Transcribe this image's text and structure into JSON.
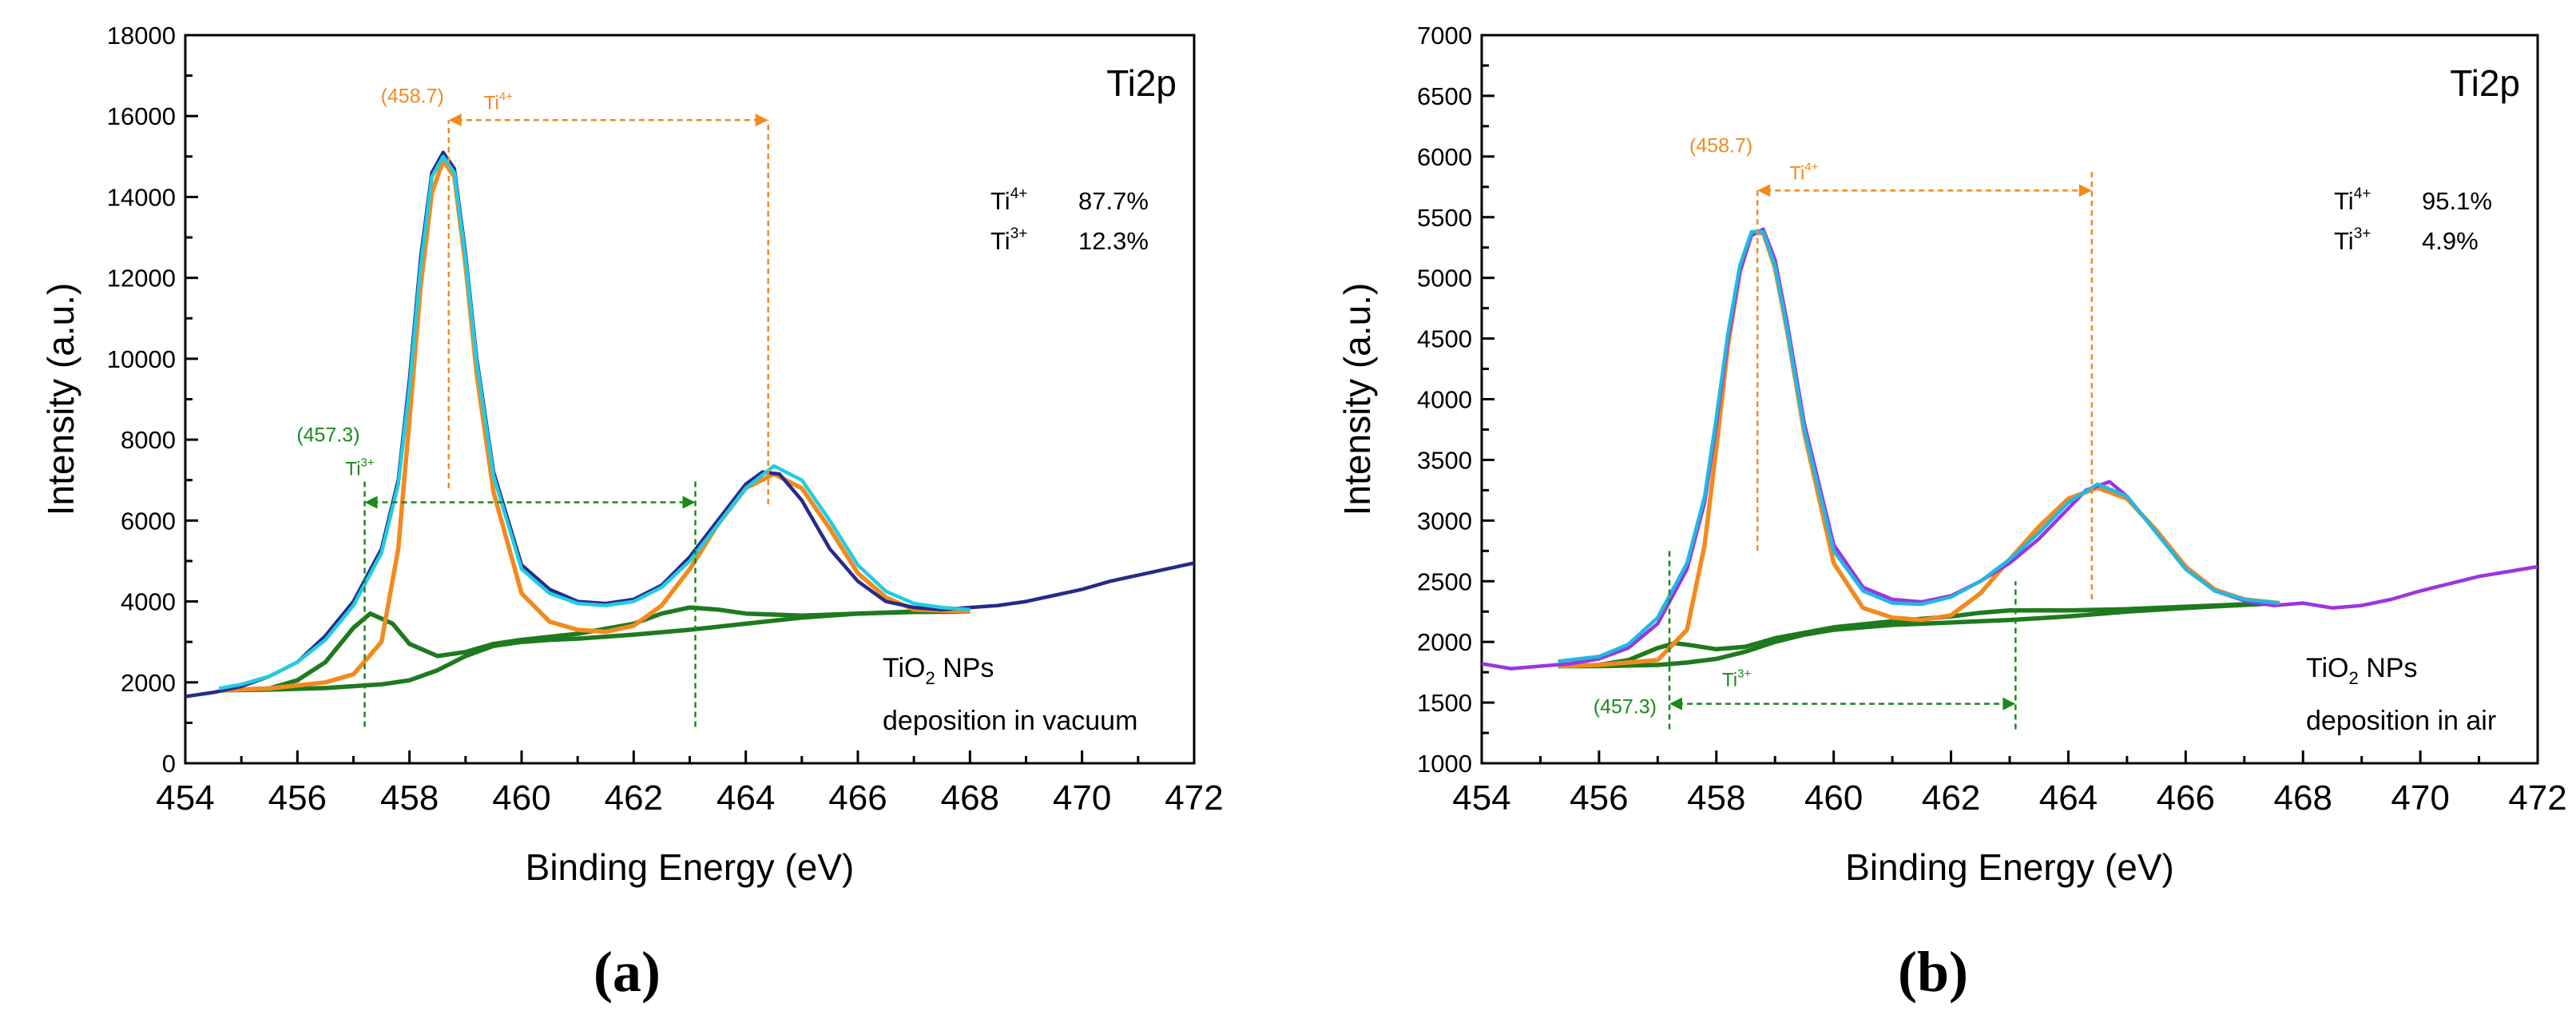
{
  "chart_data": [
    {
      "panel_label": "(a)",
      "type": "line",
      "title": "Ti2p",
      "xlabel": "Binding Energy (eV)",
      "ylabel": "Intensity (a.u.)",
      "xlim": [
        454,
        472
      ],
      "ylim": [
        0,
        18000
      ],
      "xticks": [
        454,
        456,
        458,
        460,
        462,
        464,
        466,
        468,
        470,
        472
      ],
      "yticks": [
        0,
        2000,
        4000,
        6000,
        8000,
        10000,
        12000,
        14000,
        16000,
        18000
      ],
      "grid": false,
      "ratios": [
        {
          "ion": "Ti",
          "charge": "4+",
          "value": "87.7%"
        },
        {
          "ion": "Ti",
          "charge": "3+",
          "value": "12.3%"
        }
      ],
      "sample_label": {
        "line1_prefix": "TiO",
        "line1_sub": "2",
        "line1_suffix": " NPs",
        "line2": "deposition in vacuum"
      },
      "annotations": {
        "ti4": {
          "position": "(458.7)",
          "ion": "Ti",
          "charge": "4+",
          "from": 458.7,
          "to": 464.4,
          "arrow_y": 15900,
          "vline1_range": [
            6800,
            15900
          ],
          "vline2_range": [
            6400,
            15900
          ],
          "color": "#f28a1e"
        },
        "ti3": {
          "position": "(457.3)",
          "ion": "Ti",
          "charge": "3+",
          "from": 457.2,
          "to": 463.1,
          "arrow_y": 6450,
          "vline1_range": [
            900,
            7000
          ],
          "vline2_range": [
            900,
            7000
          ],
          "color": "#1a8a1a"
        }
      },
      "series": [
        {
          "role": "measured",
          "color": "#262a8c",
          "x": [
            454.0,
            454.5,
            455.0,
            455.5,
            456.0,
            456.5,
            457.0,
            457.5,
            457.8,
            458.0,
            458.2,
            458.4,
            458.6,
            458.8,
            459.0,
            459.2,
            459.5,
            460.0,
            460.5,
            461.0,
            461.5,
            462.0,
            462.5,
            463.0,
            463.5,
            464.0,
            464.3,
            464.6,
            465.0,
            465.5,
            466.0,
            466.5,
            467.0,
            467.5,
            468.0,
            468.5,
            469.0,
            469.5,
            470.0,
            470.5,
            471.0,
            471.5,
            472.0
          ],
          "y": [
            1650,
            1750,
            1900,
            2150,
            2500,
            3150,
            4000,
            5300,
            7000,
            9500,
            12500,
            14600,
            15100,
            14700,
            12600,
            10000,
            7200,
            4900,
            4300,
            4000,
            3950,
            4050,
            4400,
            5100,
            6000,
            6900,
            7200,
            7150,
            6500,
            5300,
            4500,
            4000,
            3850,
            3800,
            3850,
            3900,
            4000,
            4150,
            4300,
            4500,
            4650,
            4800,
            4950
          ]
        },
        {
          "role": "envelope",
          "color": "#22cce0",
          "x": [
            454.6,
            455.0,
            455.5,
            456.0,
            456.5,
            457.0,
            457.5,
            457.8,
            458.0,
            458.2,
            458.4,
            458.6,
            458.8,
            459.0,
            459.2,
            459.5,
            460.0,
            460.5,
            461.0,
            461.5,
            462.0,
            462.5,
            463.0,
            463.5,
            464.0,
            464.5,
            465.0,
            465.5,
            466.0,
            466.5,
            467.0,
            467.5,
            468.0
          ],
          "y": [
            1850,
            1950,
            2150,
            2500,
            3050,
            3900,
            5200,
            6900,
            9300,
            12300,
            14500,
            15000,
            14600,
            12500,
            9900,
            7100,
            4800,
            4200,
            3950,
            3900,
            4000,
            4350,
            5000,
            5900,
            6800,
            7350,
            7000,
            6000,
            4900,
            4250,
            3950,
            3850,
            3800
          ]
        },
        {
          "role": "Ti4+ component",
          "color": "#f28a1e",
          "x": [
            454.6,
            455.5,
            456.5,
            457.0,
            457.5,
            457.8,
            458.0,
            458.2,
            458.4,
            458.6,
            458.8,
            459.0,
            459.2,
            459.5,
            460.0,
            460.5,
            461.0,
            461.5,
            462.0,
            462.5,
            463.0,
            463.5,
            464.0,
            464.5,
            465.0,
            465.5,
            466.0,
            466.5,
            467.0,
            468.0
          ],
          "y": [
            1800,
            1850,
            2000,
            2200,
            3000,
            5300,
            8500,
            11800,
            14100,
            14900,
            14500,
            12300,
            9600,
            6700,
            4200,
            3500,
            3300,
            3250,
            3400,
            3900,
            4800,
            5900,
            6800,
            7150,
            6800,
            5800,
            4700,
            4100,
            3800,
            3750
          ]
        },
        {
          "role": "Ti3+ component",
          "color": "#1f7a1f",
          "x": [
            454.6,
            455.5,
            456.0,
            456.5,
            457.0,
            457.3,
            457.7,
            458.0,
            458.5,
            459.0,
            459.5,
            460.0,
            461.0,
            462.0,
            462.5,
            463.0,
            463.5,
            464.0,
            465.0,
            466.0,
            467.0,
            468.0
          ],
          "y": [
            1800,
            1850,
            2050,
            2500,
            3350,
            3700,
            3450,
            2950,
            2650,
            2750,
            2950,
            3050,
            3200,
            3450,
            3700,
            3850,
            3800,
            3700,
            3650,
            3700,
            3750,
            3750
          ]
        },
        {
          "role": "background",
          "color": "#1f7a1f",
          "x": [
            454.6,
            455.5,
            456.5,
            457.5,
            458.0,
            458.5,
            459.0,
            459.5,
            460.0,
            460.5,
            461.0,
            462.0,
            463.0,
            464.0,
            465.0,
            466.0,
            467.0,
            468.0
          ],
          "y": [
            1800,
            1820,
            1860,
            1950,
            2050,
            2300,
            2650,
            2900,
            3000,
            3050,
            3080,
            3180,
            3300,
            3450,
            3600,
            3700,
            3740,
            3750
          ]
        }
      ]
    },
    {
      "panel_label": "(b)",
      "type": "line",
      "title": "Ti2p",
      "xlabel": "Binding Energy (eV)",
      "ylabel": "Intensity (a.u.)",
      "xlim": [
        454,
        472
      ],
      "ylim": [
        1000,
        7000
      ],
      "xticks": [
        454,
        456,
        458,
        460,
        462,
        464,
        466,
        468,
        470,
        472
      ],
      "yticks": [
        1000,
        1500,
        2000,
        2500,
        3000,
        3500,
        4000,
        4500,
        5000,
        5500,
        6000,
        6500,
        7000
      ],
      "grid": false,
      "ratios": [
        {
          "ion": "Ti",
          "charge": "4+",
          "value": "95.1%"
        },
        {
          "ion": "Ti",
          "charge": "3+",
          "value": "4.9%"
        }
      ],
      "sample_label": {
        "line1_prefix": "TiO",
        "line1_sub": "2",
        "line1_suffix": " NPs",
        "line2": "deposition in air"
      },
      "annotations": {
        "ti4": {
          "position": "(458.7)",
          "ion": "Ti",
          "charge": "4+",
          "from": 458.7,
          "to": 464.4,
          "arrow_y": 5720,
          "vline1_range": [
            2750,
            5720
          ],
          "vline2_range": [
            2350,
            5900
          ],
          "color": "#f28a1e"
        },
        "ti3": {
          "position": "(457.3)",
          "ion": "Ti",
          "charge": "3+",
          "from": 457.2,
          "to": 463.1,
          "arrow_y": 1490,
          "vline1_range": [
            1280,
            2750
          ],
          "vline2_range": [
            1280,
            2500
          ],
          "color": "#1a8a1a"
        }
      },
      "series": [
        {
          "role": "measured",
          "color": "#9b35e0",
          "x": [
            454.0,
            454.5,
            455.0,
            455.5,
            456.0,
            456.5,
            457.0,
            457.5,
            457.8,
            458.0,
            458.2,
            458.4,
            458.6,
            458.8,
            459.0,
            459.2,
            459.5,
            460.0,
            460.5,
            461.0,
            461.5,
            462.0,
            462.5,
            463.0,
            463.5,
            464.0,
            464.3,
            464.7,
            465.0,
            465.5,
            466.0,
            466.5,
            467.0,
            467.5,
            468.0,
            468.5,
            469.0,
            469.5,
            470.0,
            470.5,
            471.0,
            471.5,
            472.0
          ],
          "y": [
            1820,
            1780,
            1800,
            1820,
            1860,
            1950,
            2150,
            2600,
            3150,
            3800,
            4500,
            5050,
            5350,
            5400,
            5150,
            4650,
            3800,
            2800,
            2450,
            2350,
            2330,
            2380,
            2500,
            2650,
            2850,
            3100,
            3250,
            3320,
            3200,
            2900,
            2600,
            2420,
            2340,
            2300,
            2320,
            2280,
            2300,
            2350,
            2420,
            2480,
            2540,
            2580,
            2620
          ]
        },
        {
          "role": "envelope",
          "color": "#22b8e0",
          "x": [
            455.3,
            456.0,
            456.5,
            457.0,
            457.5,
            457.8,
            458.0,
            458.2,
            458.4,
            458.6,
            458.8,
            459.0,
            459.2,
            459.5,
            460.0,
            460.5,
            461.0,
            461.5,
            462.0,
            462.5,
            463.0,
            463.5,
            464.0,
            464.5,
            465.0,
            465.5,
            466.0,
            466.5,
            467.0,
            467.6
          ],
          "y": [
            1840,
            1880,
            1980,
            2200,
            2650,
            3200,
            3850,
            4550,
            5100,
            5380,
            5380,
            5100,
            4600,
            3750,
            2750,
            2420,
            2320,
            2310,
            2370,
            2500,
            2680,
            2900,
            3150,
            3300,
            3200,
            2900,
            2600,
            2420,
            2350,
            2320
          ]
        },
        {
          "role": "Ti4+ component",
          "color": "#f28a1e",
          "x": [
            455.3,
            456.0,
            457.0,
            457.5,
            457.8,
            458.0,
            458.2,
            458.4,
            458.6,
            458.8,
            459.0,
            459.2,
            459.5,
            460.0,
            460.5,
            461.0,
            461.5,
            462.0,
            462.5,
            463.0,
            463.5,
            464.0,
            464.5,
            465.0,
            465.5,
            466.0,
            466.5,
            467.0,
            467.6
          ],
          "y": [
            1800,
            1810,
            1850,
            2100,
            2800,
            3600,
            4450,
            5050,
            5370,
            5370,
            5080,
            4580,
            3720,
            2650,
            2280,
            2200,
            2180,
            2220,
            2400,
            2680,
            2950,
            3180,
            3270,
            3180,
            2920,
            2620,
            2430,
            2350,
            2320
          ]
        },
        {
          "role": "Ti3+ component",
          "color": "#1f7a1f",
          "x": [
            455.3,
            456.0,
            456.5,
            457.0,
            457.3,
            457.6,
            458.0,
            458.5,
            459.0,
            460.0,
            461.0,
            462.0,
            462.5,
            463.0,
            463.5,
            464.0,
            465.0,
            466.0,
            467.0,
            467.6
          ],
          "y": [
            1800,
            1810,
            1850,
            1950,
            1990,
            1970,
            1940,
            1960,
            2030,
            2120,
            2170,
            2210,
            2240,
            2260,
            2260,
            2260,
            2270,
            2290,
            2310,
            2320
          ]
        },
        {
          "role": "background",
          "color": "#1f7a1f",
          "x": [
            455.3,
            456.0,
            457.0,
            457.5,
            458.0,
            458.5,
            459.0,
            459.5,
            460.0,
            461.0,
            462.0,
            463.0,
            464.0,
            465.0,
            466.0,
            467.0,
            467.6
          ],
          "y": [
            1800,
            1800,
            1810,
            1830,
            1860,
            1920,
            2000,
            2060,
            2100,
            2140,
            2160,
            2180,
            2210,
            2250,
            2280,
            2305,
            2320
          ]
        }
      ]
    }
  ]
}
